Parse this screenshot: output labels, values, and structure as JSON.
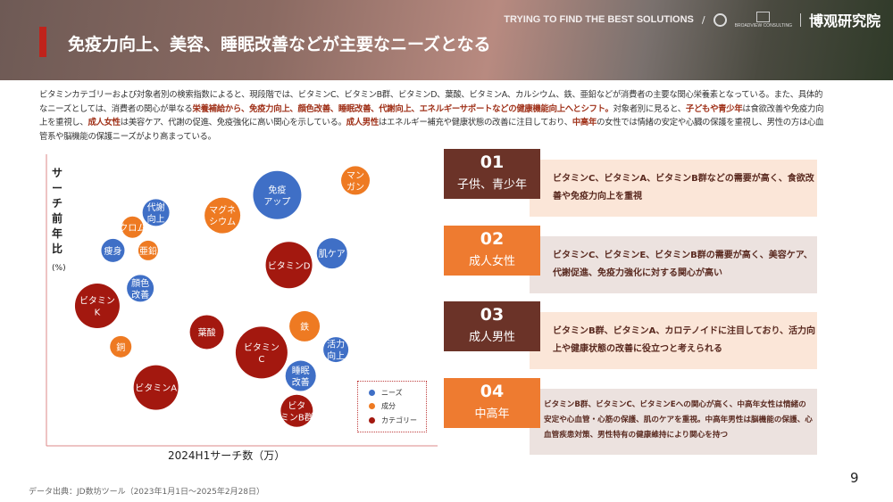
{
  "header": {
    "title": "免疫力向上、美容、睡眠改善などが主要なニーズとなる",
    "tagline": "TRYING TO FIND THE BEST SOLUTIONS",
    "separator": "/",
    "brand": "博观研究院",
    "brand_mark": "BROADVIEW CONSULTING"
  },
  "intro": [
    {
      "text": "ビタミンカテゴリーおよび対象者別の検索指数によると、現段階では、ビタミンC、ビタミンB群、ビタミンD、葉酸、ビタミンA、カルシウム、鉄、亜鉛などが消費者の主要な関心栄養素となっている。また、具体的なニーズとしては、消費者の関心が単なる",
      "hl": false
    },
    {
      "text": "栄養補給から、免疫力向上、顔色改善、睡眠改善、代謝向上、エネルギーサポートなどの健康機能向上へとシフト。",
      "hl": true
    },
    {
      "text": "対象者別に見ると、",
      "hl": false
    },
    {
      "text": "子どもや青少年",
      "hl": true
    },
    {
      "text": "は食欲改善や免疫力向上を重視し、",
      "hl": false
    },
    {
      "text": "成人女性",
      "hl": true
    },
    {
      "text": "は美容ケア、代謝の促進、免疫強化に高い関心を示している。",
      "hl": false
    },
    {
      "text": "成人男性",
      "hl": true
    },
    {
      "text": "はエネルギー補充や健康状態の改善に注目しており、",
      "hl": false
    },
    {
      "text": "中高年",
      "hl": true
    },
    {
      "text": "の女性では情緒の安定や心臓の保護を重視し、男性の方は心血管系や脳機能の保護ニーズがより高まっている。",
      "hl": false
    }
  ],
  "colors": {
    "ニーズ": "#3f6fc6",
    "成分": "#ee7a22",
    "カテゴリー": "#a3180f",
    "brown": "#6b3328",
    "orange": "#ee7b30",
    "peach": "#fbe6d8",
    "grey": "#ece2df"
  },
  "chart_data": {
    "type": "bubble",
    "xlabel": "2024H1サーチ数（万）",
    "ylabel": "サーチ前年比",
    "yunit": "(%)",
    "legend": {
      "position": "bottom-right",
      "items": [
        "ニーズ",
        "成分",
        "カテゴリー"
      ]
    },
    "grid": false,
    "points": [
      {
        "label": [
          "免疫",
          "アップ"
        ],
        "group": "ニーズ",
        "x": 59,
        "y": 86,
        "size": 27
      },
      {
        "label": [
          "マン",
          "ガン"
        ],
        "group": "成分",
        "x": 79,
        "y": 91,
        "size": 16
      },
      {
        "label": [
          "代謝",
          "向上"
        ],
        "group": "ニーズ",
        "x": 28,
        "y": 80,
        "size": 15
      },
      {
        "label": [
          "マグネ",
          "シウム"
        ],
        "group": "成分",
        "x": 45,
        "y": 79,
        "size": 20
      },
      {
        "label": [
          "クロム"
        ],
        "group": "成分",
        "x": 22,
        "y": 75,
        "size": 12
      },
      {
        "label": [
          "痩身"
        ],
        "group": "ニーズ",
        "x": 17,
        "y": 67,
        "size": 13
      },
      {
        "label": [
          "亜鉛"
        ],
        "group": "成分",
        "x": 26,
        "y": 67,
        "size": 11
      },
      {
        "label": [
          "ビタミンD"
        ],
        "group": "カテゴリー",
        "x": 62,
        "y": 62,
        "size": 26
      },
      {
        "label": [
          "肌ケア"
        ],
        "group": "ニーズ",
        "x": 73,
        "y": 66,
        "size": 17
      },
      {
        "label": [
          "顔色",
          "改善"
        ],
        "group": "ニーズ",
        "x": 24,
        "y": 54,
        "size": 15
      },
      {
        "label": [
          "ビタミン",
          "K"
        ],
        "group": "カテゴリー",
        "x": 13,
        "y": 48,
        "size": 25
      },
      {
        "label": [
          "葉酸"
        ],
        "group": "カテゴリー",
        "x": 41,
        "y": 39,
        "size": 19
      },
      {
        "label": [
          "鉄"
        ],
        "group": "成分",
        "x": 66,
        "y": 41,
        "size": 17
      },
      {
        "label": [
          "ビタミン",
          "C"
        ],
        "group": "カテゴリー",
        "x": 55,
        "y": 32,
        "size": 29
      },
      {
        "label": [
          "活力",
          "向上"
        ],
        "group": "ニーズ",
        "x": 74,
        "y": 33,
        "size": 14
      },
      {
        "label": [
          "銅"
        ],
        "group": "成分",
        "x": 19,
        "y": 34,
        "size": 12
      },
      {
        "label": [
          "ビタミンA"
        ],
        "group": "カテゴリー",
        "x": 28,
        "y": 20,
        "size": 25
      },
      {
        "label": [
          "睡眠",
          "改善"
        ],
        "group": "ニーズ",
        "x": 65,
        "y": 24,
        "size": 17
      },
      {
        "label": [
          "ビタ",
          "ミンB群"
        ],
        "group": "カテゴリー",
        "x": 64,
        "y": 12,
        "size": 18
      }
    ]
  },
  "cards": [
    {
      "num": "01",
      "group": "子供、青少年",
      "text": "ビタミンC、ビタミンA、ビタミンB群などの需要が高く、食欲改善や免疫力向上を重視",
      "num_color": "#6b3328",
      "bg": "#fbe6d8"
    },
    {
      "num": "02",
      "group": "成人女性",
      "text": "ビタミンC、ビタミンE、ビタミンB群の需要が高く、美容ケア、代謝促進、免疫力強化に対する関心が高い",
      "num_color": "#ee7b30",
      "bg": "#ece2df"
    },
    {
      "num": "03",
      "group": "成人男性",
      "text": "ビタミンB群、ビタミンA、カロテノイドに注目しており、活力向上や健康状態の改善に役立つと考えられる",
      "num_color": "#6b3328",
      "bg": "#fbe6d8"
    },
    {
      "num": "04",
      "group": "中高年",
      "text": "ビタミンB群、ビタミンC、ビタミンEへの関心が高く、中高年女性は情緒の安定や心血管・心筋の保護、肌のケアを重視。中高年男性は脳機能の保護、心血管疾患対策、男性特有の健康維持により関心を持つ",
      "num_color": "#ee7b30",
      "bg": "#ece2df"
    }
  ],
  "footer": {
    "source": "データ出典：JD数坊ツール（2023年1月1日～2025年2月28日）",
    "page": "9"
  }
}
